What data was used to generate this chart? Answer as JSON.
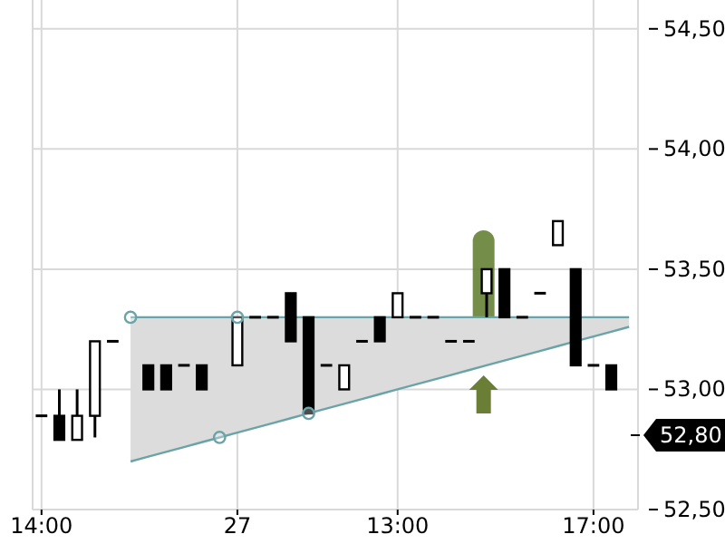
{
  "chart_data": {
    "type": "candlestick",
    "categories": [
      "14:00",
      null,
      null,
      null,
      null,
      null,
      null,
      null,
      null,
      null,
      null,
      "27",
      null,
      null,
      null,
      null,
      null,
      null,
      null,
      null,
      "13:00",
      null,
      null,
      null,
      null,
      null,
      null,
      null,
      null,
      null,
      null,
      "17:00",
      null,
      null
    ],
    "ohlc": [
      [
        52.89,
        52.89,
        52.89,
        52.89
      ],
      [
        52.89,
        53.0,
        52.79,
        52.79
      ],
      [
        52.79,
        53.0,
        52.79,
        52.89
      ],
      [
        52.89,
        53.2,
        52.8,
        53.2
      ],
      [
        53.2,
        53.2,
        53.2,
        53.2
      ],
      null,
      [
        53.1,
        53.1,
        53.0,
        53.0
      ],
      [
        53.1,
        53.1,
        53.0,
        53.0
      ],
      [
        53.1,
        53.1,
        53.1,
        53.1
      ],
      [
        53.1,
        53.1,
        53.0,
        53.0
      ],
      null,
      [
        53.1,
        53.3,
        53.1,
        53.3
      ],
      [
        53.3,
        53.3,
        53.3,
        53.3
      ],
      [
        53.3,
        53.3,
        53.3,
        53.3
      ],
      [
        53.4,
        53.4,
        53.2,
        53.2
      ],
      [
        53.3,
        53.3,
        52.9,
        52.9
      ],
      [
        53.1,
        53.1,
        53.1,
        53.1
      ],
      [
        53.0,
        53.1,
        53.0,
        53.1
      ],
      [
        53.2,
        53.2,
        53.2,
        53.2
      ],
      [
        53.3,
        53.3,
        53.2,
        53.2
      ],
      [
        53.3,
        53.4,
        53.3,
        53.4
      ],
      [
        53.3,
        53.3,
        53.3,
        53.3
      ],
      [
        53.3,
        53.3,
        53.3,
        53.3
      ],
      [
        53.2,
        53.2,
        53.2,
        53.2
      ],
      [
        53.2,
        53.2,
        53.2,
        53.2
      ],
      [
        53.4,
        53.5,
        53.3,
        53.5
      ],
      [
        53.5,
        53.5,
        53.3,
        53.3
      ],
      [
        53.3,
        53.3,
        53.3,
        53.3
      ],
      [
        53.4,
        53.4,
        53.4,
        53.4
      ],
      [
        53.6,
        53.7,
        53.6,
        53.7
      ],
      [
        53.5,
        53.5,
        53.1,
        53.1
      ],
      [
        53.1,
        53.1,
        53.1,
        53.1
      ],
      [
        53.1,
        53.1,
        53.0,
        53.0
      ],
      null
    ],
    "series": [
      {
        "type": "line",
        "color": "#6aa3a8",
        "values": [
          null,
          null,
          null,
          null,
          null,
          53.3,
          53.3,
          53.3,
          53.3,
          53.3,
          53.3,
          53.3,
          53.3,
          53.3,
          53.3,
          53.3,
          53.3,
          53.3,
          53.3,
          53.3,
          53.3,
          53.3,
          53.3,
          53.3,
          53.3,
          53.3,
          53.3,
          53.3,
          53.3,
          53.3,
          53.3,
          53.3,
          53.3,
          53.3
        ],
        "upper": [
          null,
          null,
          null,
          null,
          null,
          53.3,
          53.3,
          53.3,
          53.3,
          53.3,
          53.3,
          53.3,
          53.3,
          53.3,
          53.3,
          53.3,
          53.3,
          53.3,
          53.3,
          53.3,
          53.3,
          53.3,
          53.3,
          53.3,
          53.3,
          53.3,
          53.3,
          53.3,
          53.3,
          53.3,
          53.3,
          53.3,
          53.3,
          53.3
        ],
        "lower": [
          null,
          null,
          null,
          null,
          null,
          52.7,
          52.72,
          52.74,
          52.76,
          52.78,
          52.8,
          52.82,
          52.84,
          52.86,
          52.88,
          52.9,
          52.92,
          52.94,
          52.96,
          52.98,
          53.0,
          53.02,
          53.04,
          53.06,
          53.08,
          53.1,
          53.12,
          53.14,
          53.16,
          53.18,
          53.2,
          53.22,
          53.24,
          53.26
        ]
      },
      {
        "type": "line",
        "color": "#6aa3a8",
        "values": [
          null,
          null,
          null,
          null,
          null,
          52.7,
          52.72,
          52.74,
          52.76,
          52.78,
          52.8,
          52.82,
          52.84,
          52.86,
          52.88,
          52.9,
          52.92,
          52.94,
          52.96,
          52.98,
          53.0,
          53.02,
          53.04,
          53.06,
          53.08,
          53.1,
          53.12,
          53.14,
          53.16,
          53.18,
          53.2,
          53.22,
          53.24,
          53.26
        ]
      },
      {
        "type": "scatter",
        "color": "#6aa3a8",
        "marker": "circle",
        "values": [
          null,
          null,
          null,
          null,
          null,
          53.3,
          null,
          null,
          null,
          null,
          52.8,
          53.3,
          null,
          null,
          null,
          52.9,
          null,
          null,
          null,
          null,
          null,
          null,
          null,
          null,
          null,
          null,
          null,
          null,
          null,
          null,
          null,
          null,
          null,
          null
        ]
      }
    ],
    "ylim": [
      52.5,
      54.62
    ],
    "yticks": [
      {
        "value": 52.5,
        "label": "52,50"
      },
      {
        "value": 53.0,
        "label": "53,00"
      },
      {
        "value": 53.5,
        "label": "53,50"
      },
      {
        "value": 54.0,
        "label": "54,00"
      },
      {
        "value": 54.5,
        "label": "54,50"
      }
    ],
    "annotations": [
      "52,80"
    ],
    "grid": true
  }
}
